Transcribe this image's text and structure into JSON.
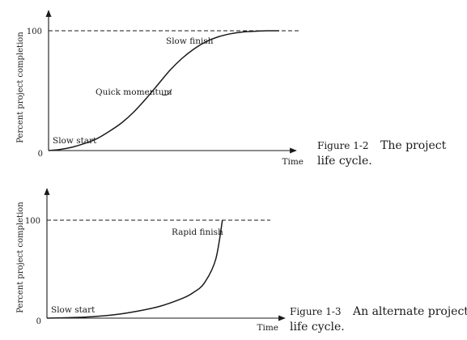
{
  "chart_data": [
    {
      "type": "line",
      "ylabel": "Percent project completion",
      "xlabel": "Time",
      "ylim": [
        0,
        100
      ],
      "y_ticks": [
        "0",
        "100"
      ],
      "reference_line": 100,
      "series": [
        {
          "x": [
            0,
            5,
            10,
            15,
            20,
            25,
            30,
            35,
            40,
            45,
            50,
            55,
            60,
            65,
            70,
            75,
            80,
            85,
            90,
            95
          ],
          "y": [
            0,
            1,
            3,
            6,
            10,
            16,
            23,
            32,
            43,
            55,
            67,
            77,
            85,
            91,
            95,
            97.5,
            99,
            99.6,
            100,
            100
          ]
        }
      ],
      "annotations": [
        {
          "text": "Slow start",
          "x": 3,
          "y": 5
        },
        {
          "text": "Quick momentum",
          "x": 40,
          "y": 43
        },
        {
          "text": "Slow finish",
          "x": 62,
          "y": 88
        }
      ],
      "figure_number": "Figure 1-2",
      "figure_caption_line1": "The project",
      "figure_caption_line2": "life cycle."
    },
    {
      "type": "line",
      "ylabel": "Percent project completion",
      "xlabel": "Time",
      "ylim": [
        0,
        100
      ],
      "y_ticks": [
        "0",
        "100"
      ],
      "reference_line": 100,
      "series": [
        {
          "x": [
            0,
            10,
            20,
            30,
            40,
            50,
            60,
            65,
            70,
            75,
            78
          ],
          "y": [
            0,
            0.5,
            1.5,
            3.5,
            7,
            12,
            20,
            26,
            36,
            60,
            100
          ]
        }
      ],
      "annotations": [
        {
          "text": "Slow start",
          "x": 3,
          "y": 6
        },
        {
          "text": "Rapid finish",
          "x": 66,
          "y": 88
        }
      ],
      "figure_number": "Figure 1-3",
      "figure_caption_line1": "An alternate project",
      "figure_caption_line2": "life cycle."
    }
  ]
}
